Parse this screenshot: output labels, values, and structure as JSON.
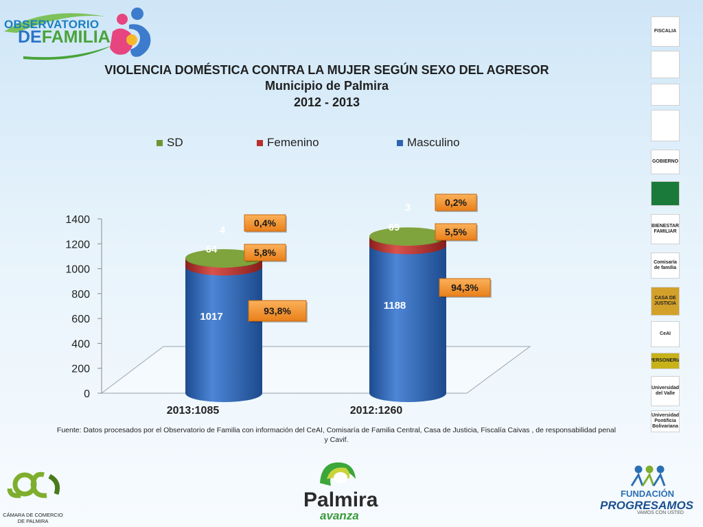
{
  "header": {
    "logo_line1": "OBSERVATORIO",
    "logo_line2_prefix": "DE",
    "logo_line2_main": "FAMILIA"
  },
  "chart_data": {
    "type": "bar",
    "title": "VIOLENCIA DOMÉSTICA CONTRA LA MUJER SEGÚN SEXO DEL AGRESOR",
    "subtitle": "Municipio de Palmira",
    "period": "2012 - 2013",
    "categories": [
      "2013:1085",
      "2012:1260"
    ],
    "stacked": true,
    "series": [
      {
        "name": "Masculino",
        "values": [
          1017,
          1188
        ],
        "pct_labels": [
          "93,8%",
          "94,3%"
        ],
        "color": "#2f63b0"
      },
      {
        "name": "Femenino",
        "values": [
          64,
          69
        ],
        "pct_labels": [
          "5,8%",
          "5,5%"
        ],
        "color": "#b8302c"
      },
      {
        "name": "SD",
        "values": [
          4,
          3
        ],
        "pct_labels": [
          "0,4%",
          "0,2%"
        ],
        "color": "#6f9533"
      }
    ],
    "legend_order": [
      "SD",
      "Femenino",
      "Masculino"
    ],
    "legend_position": "top",
    "ylim": [
      0,
      1400
    ],
    "yticks": [
      "0",
      "200",
      "400",
      "600",
      "800",
      "1000",
      "1200",
      "1400"
    ],
    "xlabel": "",
    "ylabel": "",
    "callout_color": "#f7931e"
  },
  "source": {
    "text": "Fuente: Datos procesados por el Observatorio de  Familia con información del CeAI, Comisaría de Familia Central, Casa de Justicia, Fiscalía Caivas , de responsabilidad penal y Cavif."
  },
  "side_logos": [
    {
      "name": "fiscalia-logo",
      "label": "FISCALIA"
    },
    {
      "name": "police-logo",
      "label": ""
    },
    {
      "name": "medicina-legal-logo",
      "label": ""
    },
    {
      "name": "red-logo",
      "label": ""
    },
    {
      "name": "gobierno-logo",
      "label": "GOBIERNO"
    },
    {
      "name": "green-logo",
      "label": ""
    },
    {
      "name": "bienestar-familiar-logo",
      "label": "BIENESTAR FAMILIAR"
    },
    {
      "name": "comisaria-logo",
      "label": "Comisaría de familia"
    },
    {
      "name": "casa-justicia-logo",
      "label": "CASA DE JUSTICIA"
    },
    {
      "name": "ceai-logo",
      "label": "CeAI"
    },
    {
      "name": "personeria-logo",
      "label": "PERSONERIA"
    },
    {
      "name": "univalle-logo",
      "label": "Universidad del Valle"
    },
    {
      "name": "upb-logo",
      "label": "Universidad Pontificia Bolivariana"
    }
  ],
  "footer": {
    "ccp_label": "CÁMARA DE COMERCIO DE PALMIRA",
    "palmira": "Palmira",
    "avanza": "avanza",
    "fund_line1": "FUNDACIÓN",
    "fund_line2": "PROGRESAMOS",
    "fund_line3": "VAMOS CON USTED"
  }
}
